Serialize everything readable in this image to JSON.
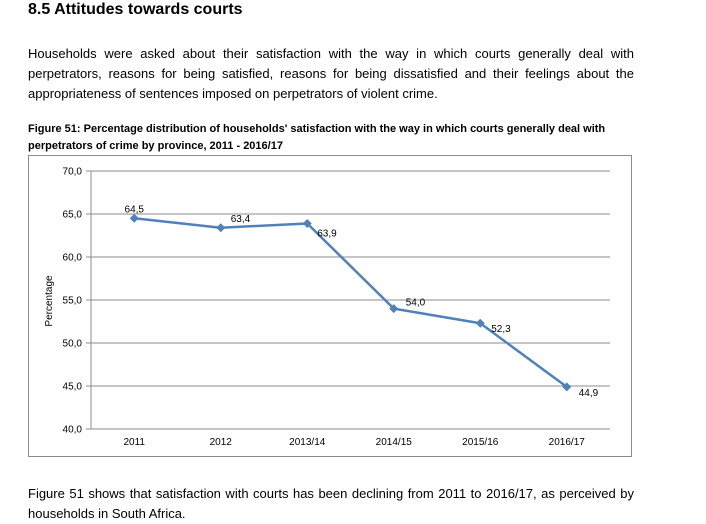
{
  "section": {
    "heading": "8.5  Attitudes towards courts",
    "intro": "Households were asked about their satisfaction with the way in which courts generally deal with perpetrators, reasons for being satisfied, reasons for being dissatisfied and their feelings about the appropriateness of sentences imposed on perpetrators of violent crime.",
    "figure_caption": "Figure 51: Percentage distribution of households' satisfaction with the way in which courts generally deal with perpetrators of crime by province, 2011 - 2016/17",
    "conclusion": "Figure 51 shows that satisfaction with courts has been declining from 2011 to 2016/17, as perceived by households in South Africa."
  },
  "chart_data": {
    "type": "line",
    "title": "",
    "xlabel": "",
    "ylabel": "Percentage",
    "categories": [
      "2011",
      "2012",
      "2013/14",
      "2014/15",
      "2015/16",
      "2016/17"
    ],
    "series": [
      {
        "values": [
          64.5,
          63.4,
          63.9,
          54.0,
          52.3,
          44.9
        ],
        "labels": [
          "64,5",
          "63,4",
          "63,9",
          "54,0",
          "52,3",
          "44,9"
        ]
      }
    ],
    "ylim": [
      40,
      70
    ],
    "yticks": [
      40,
      45,
      50,
      55,
      60,
      65,
      70
    ],
    "ytick_labels": [
      "40,0",
      "45,0",
      "50,0",
      "55,0",
      "60,0",
      "65,0",
      "70,0"
    ],
    "grid": "horizontal",
    "legend": "none",
    "colors": {
      "line": "#4f81bd",
      "grid": "#8c8c8c"
    }
  }
}
